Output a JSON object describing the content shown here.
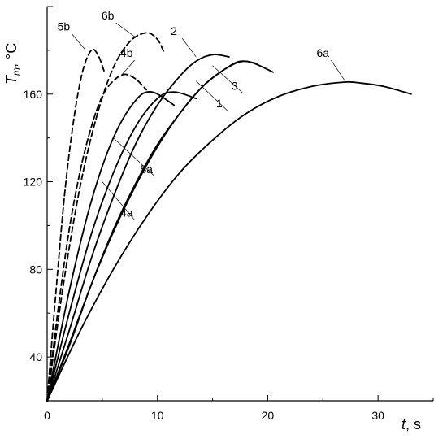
{
  "chart_data": {
    "type": "line",
    "title": "",
    "xlabel": {
      "var": "t",
      "unit": ", s"
    },
    "ylabel": {
      "var": "T",
      "sub": "m",
      "unit": ", °C"
    },
    "xlim": [
      0,
      35
    ],
    "ylim": [
      20,
      200
    ],
    "xticks": [
      0,
      10,
      20,
      30
    ],
    "yticks": [
      40,
      80,
      120,
      160
    ],
    "grid": false,
    "legend": "none (curves labelled directly with leader lines)",
    "series": [
      {
        "name": "1",
        "style": "solid",
        "x": [
          0,
          2,
          4,
          6,
          8,
          10,
          12,
          14,
          16,
          17.5,
          19
        ],
        "y": [
          20,
          45,
          73,
          98,
          119,
          137,
          151,
          163,
          171,
          175,
          174
        ]
      },
      {
        "name": "2",
        "style": "solid",
        "x": [
          0,
          2,
          4,
          6,
          8,
          10,
          12,
          13.5,
          15,
          16.5
        ],
        "y": [
          20,
          52,
          85,
          113,
          137,
          155,
          168,
          175,
          178,
          177
        ]
      },
      {
        "name": "3",
        "style": "solid",
        "x": [
          0,
          2,
          4,
          6,
          8,
          10,
          12,
          14,
          16,
          18,
          20.5
        ],
        "y": [
          20,
          46,
          73,
          97,
          118,
          136,
          151,
          163,
          171,
          175,
          170
        ]
      },
      {
        "name": "4a",
        "style": "solid",
        "x": [
          0,
          2,
          4,
          6,
          8,
          10,
          11.5,
          13.5
        ],
        "y": [
          20,
          60,
          96,
          124,
          145,
          158,
          161,
          158
        ]
      },
      {
        "name": "5a",
        "style": "solid",
        "x": [
          0,
          2,
          4,
          6,
          8,
          9.5,
          11.5
        ],
        "y": [
          20,
          70,
          111,
          140,
          157,
          161,
          155
        ]
      },
      {
        "name": "6a",
        "style": "solid",
        "x": [
          0,
          3,
          6,
          9,
          12,
          15,
          18,
          21,
          24,
          27,
          28.5,
          30.5,
          33
        ],
        "y": [
          20,
          52,
          80,
          104,
          124,
          139,
          151,
          159,
          163.5,
          165.5,
          165,
          163.5,
          160
        ]
      },
      {
        "name": "4b",
        "style": "dashed",
        "x": [
          0,
          1,
          2,
          3,
          4,
          5,
          6,
          7,
          8,
          9
        ],
        "y": [
          20,
          62,
          98,
          125,
          145,
          159,
          166,
          169,
          167,
          162
        ]
      },
      {
        "name": "5b",
        "style": "dashed",
        "x": [
          0,
          0.8,
          1.6,
          2.4,
          3.2,
          4,
          4.6,
          5.2
        ],
        "y": [
          20,
          70,
          115,
          148,
          170,
          180,
          178,
          170
        ]
      },
      {
        "name": "6b",
        "style": "dashed",
        "x": [
          0,
          1.5,
          3,
          4.5,
          6,
          7.5,
          9,
          10,
          10.6
        ],
        "y": [
          20,
          74,
          118,
          150,
          172,
          184,
          188,
          185,
          179
        ]
      }
    ],
    "labels": [
      {
        "text": "5b",
        "x": 1.5,
        "y": 189,
        "to_x": 3.5,
        "to_y": 180
      },
      {
        "text": "6b",
        "x": 5.5,
        "y": 194,
        "to_x": 8.0,
        "to_y": 186
      },
      {
        "text": "4b",
        "x": 7.2,
        "y": 177,
        "to_x": 6.8,
        "to_y": 169
      },
      {
        "text": "2",
        "x": 11.5,
        "y": 187,
        "to_x": 13.5,
        "to_y": 177
      },
      {
        "text": "3",
        "x": 17.0,
        "y": 162,
        "to_x": 15.0,
        "to_y": 173
      },
      {
        "text": "1",
        "x": 15.6,
        "y": 154,
        "to_x": 13.5,
        "to_y": 166
      },
      {
        "text": "5a",
        "x": 9.0,
        "y": 124,
        "to_x": 6.0,
        "to_y": 140
      },
      {
        "text": "4a",
        "x": 7.2,
        "y": 104,
        "to_x": 5.0,
        "to_y": 120
      },
      {
        "text": "6a",
        "x": 25.0,
        "y": 177,
        "to_x": 27.0,
        "to_y": 166
      }
    ]
  }
}
